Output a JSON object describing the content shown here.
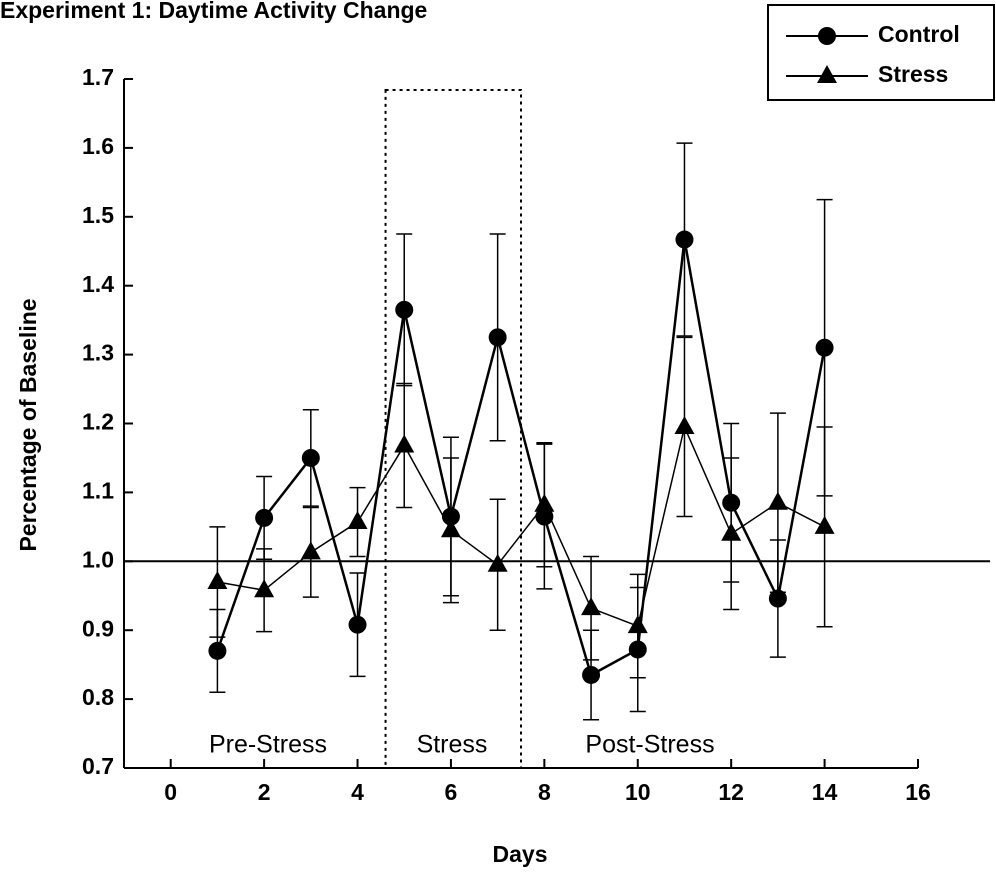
{
  "chart_data": {
    "type": "line",
    "title": "Experiment 1: Daytime Activity Change",
    "x_label": "Days",
    "y_label": "Percentage of Baseline",
    "x": [
      1,
      2,
      3,
      4,
      5,
      6,
      7,
      8,
      9,
      10,
      11,
      12,
      13,
      14
    ],
    "series": [
      {
        "name": "Control",
        "color": "#000000",
        "marker": "circle",
        "values": [
          0.87,
          1.063,
          1.15,
          0.908,
          1.365,
          1.065,
          1.325,
          1.065,
          0.835,
          0.872,
          1.467,
          1.085,
          0.946,
          1.31
        ],
        "errors": [
          0.06,
          0.06,
          0.07,
          0.075,
          0.11,
          0.115,
          0.15,
          0.105,
          0.065,
          0.09,
          0.14,
          0.115,
          0.085,
          0.215
        ]
      },
      {
        "name": "Stress",
        "color": "#000000",
        "marker": "triangle",
        "values": [
          0.97,
          0.958,
          1.013,
          1.057,
          1.168,
          1.045,
          0.995,
          1.082,
          0.932,
          0.906,
          1.195,
          1.04,
          1.085,
          1.05
        ],
        "errors": [
          0.08,
          0.06,
          0.065,
          0.05,
          0.09,
          0.105,
          0.095,
          0.09,
          0.075,
          0.075,
          0.13,
          0.11,
          0.13,
          0.145
        ]
      }
    ],
    "xlim": [
      -1,
      16
    ],
    "xticks": [
      0,
      2,
      4,
      6,
      8,
      10,
      12,
      14,
      16
    ],
    "ylim": [
      0.7,
      1.7
    ],
    "yticks": [
      0.7,
      0.8,
      0.9,
      {
        "value": 1,
        "label": "1.0"
      },
      1.1,
      1.2,
      1.3,
      1.4,
      1.5,
      1.6,
      1.7
    ],
    "reference_line": 1,
    "highlight_xrange": [
      4.6,
      7.5
    ],
    "annotations": [
      "Pre-Stress",
      "Stress",
      "Post-Stress"
    ],
    "legend": "top-right"
  }
}
